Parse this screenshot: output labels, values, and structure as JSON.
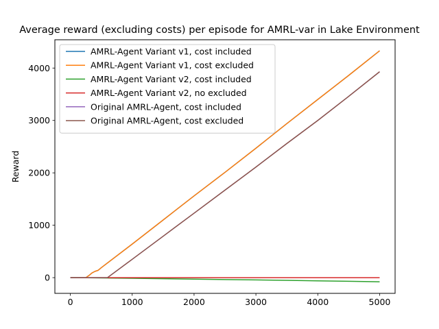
{
  "chart_data": {
    "type": "line",
    "title": "Average reward (excluding costs) per episode for AMRL-var in Lake Environment",
    "xlabel": "",
    "ylabel": "Reward",
    "xlim": [
      -250,
      5250
    ],
    "ylim": [
      -300,
      4540
    ],
    "xticks": [
      0,
      1000,
      2000,
      3000,
      4000,
      5000
    ],
    "yticks": [
      0,
      1000,
      2000,
      3000,
      4000
    ],
    "grid": false,
    "legend_position": "upper-left",
    "series": [
      {
        "name": "AMRL-Agent Variant v1, cost included",
        "color": "#1f77b4",
        "x": [
          0,
          250,
          300,
          350,
          400,
          450,
          500,
          1000,
          1500,
          2000,
          2500,
          3000,
          3500,
          4000,
          4500,
          5000
        ],
        "y": [
          0,
          0,
          40,
          90,
          120,
          140,
          190,
          640,
          1100,
          1560,
          2010,
          2470,
          2940,
          3400,
          3860,
          4330
        ]
      },
      {
        "name": "AMRL-Agent Variant v1, cost excluded",
        "color": "#ff7f0e",
        "x": [
          0,
          250,
          300,
          350,
          400,
          450,
          500,
          1000,
          1500,
          2000,
          2500,
          3000,
          3500,
          4000,
          4500,
          5000
        ],
        "y": [
          0,
          0,
          40,
          90,
          120,
          140,
          190,
          640,
          1100,
          1560,
          2010,
          2470,
          2940,
          3400,
          3860,
          4330
        ]
      },
      {
        "name": "AMRL-Agent Variant v2, cost included",
        "color": "#2ca02c",
        "x": [
          0,
          500,
          1000,
          1500,
          2000,
          2500,
          3000,
          3500,
          4000,
          4500,
          5000
        ],
        "y": [
          0,
          -5,
          -12,
          -20,
          -28,
          -36,
          -44,
          -52,
          -61,
          -70,
          -80
        ]
      },
      {
        "name": "AMRL-Agent Variant v2, no excluded",
        "color": "#d62728",
        "x": [
          0,
          5000
        ],
        "y": [
          0,
          0
        ]
      },
      {
        "name": "Original AMRL-Agent, cost included",
        "color": "#9467bd",
        "x": [
          0,
          600,
          1000,
          1500,
          2000,
          2500,
          3000,
          3500,
          4000,
          4500,
          5000
        ],
        "y": [
          0,
          0,
          350,
          790,
          1230,
          1670,
          2110,
          2560,
          3000,
          3460,
          3930
        ]
      },
      {
        "name": "Original AMRL-Agent, cost excluded",
        "color": "#8c564b",
        "x": [
          0,
          600,
          1000,
          1500,
          2000,
          2500,
          3000,
          3500,
          4000,
          4500,
          5000
        ],
        "y": [
          0,
          0,
          350,
          790,
          1230,
          1670,
          2110,
          2560,
          3000,
          3460,
          3930
        ]
      }
    ]
  }
}
